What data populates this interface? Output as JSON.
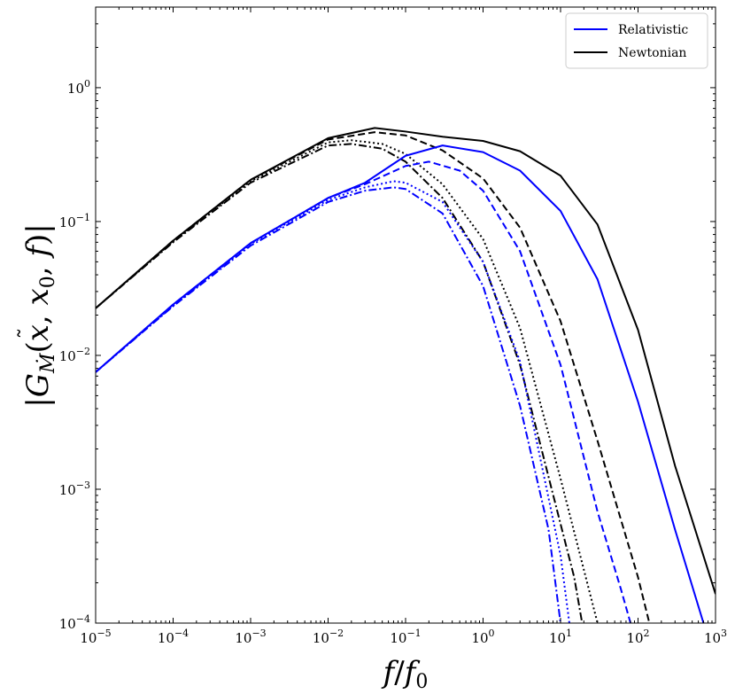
{
  "chart_data": {
    "type": "line",
    "xlabel": "f/f_0",
    "ylabel": "|G̃_Ṁ(x, x_0, f)|",
    "xscale": "log",
    "yscale": "log",
    "xlim": [
      1e-05,
      1000
    ],
    "ylim": [
      0.0001,
      4
    ],
    "grid": false,
    "legend": {
      "placement": "top-right",
      "entries": [
        {
          "label": "Relativistic",
          "color": "#0000ff"
        },
        {
          "label": "Newtonian",
          "color": "#000000"
        }
      ]
    },
    "x_ticks": [
      {
        "value": 1e-05,
        "base": "10",
        "exp": "−5"
      },
      {
        "value": 0.0001,
        "base": "10",
        "exp": "−4"
      },
      {
        "value": 0.001,
        "base": "10",
        "exp": "−3"
      },
      {
        "value": 0.01,
        "base": "10",
        "exp": "−2"
      },
      {
        "value": 0.1,
        "base": "10",
        "exp": "−1"
      },
      {
        "value": 1,
        "base": "10",
        "exp": "0"
      },
      {
        "value": 10,
        "base": "10",
        "exp": "1"
      },
      {
        "value": 100,
        "base": "10",
        "exp": "2"
      },
      {
        "value": 1000,
        "base": "10",
        "exp": "3"
      }
    ],
    "y_ticks": [
      {
        "value": 0.0001,
        "base": "10",
        "exp": "−4"
      },
      {
        "value": 0.001,
        "base": "10",
        "exp": "−3"
      },
      {
        "value": 0.01,
        "base": "10",
        "exp": "−2"
      },
      {
        "value": 0.1,
        "base": "10",
        "exp": "−1"
      },
      {
        "value": 1,
        "base": "10",
        "exp": "0"
      }
    ],
    "series": [
      {
        "model": "Newtonian",
        "style": "solid",
        "color": "#000000",
        "x": [
          1e-05,
          0.0001,
          0.001,
          0.01,
          0.04,
          0.1,
          0.3,
          1,
          3,
          10,
          30,
          100,
          300,
          1000
        ],
        "y": [
          0.0225,
          0.072,
          0.205,
          0.42,
          0.5,
          0.47,
          0.43,
          0.4,
          0.335,
          0.22,
          0.095,
          0.0155,
          0.0015,
          0.000165
        ]
      },
      {
        "model": "Newtonian",
        "style": "dashed",
        "color": "#000000",
        "x": [
          1e-05,
          0.0001,
          0.001,
          0.01,
          0.04,
          0.1,
          0.3,
          1,
          3,
          10,
          30,
          100,
          140
        ],
        "y": [
          0.0225,
          0.072,
          0.205,
          0.41,
          0.465,
          0.44,
          0.34,
          0.21,
          0.09,
          0.018,
          0.0023,
          0.00022,
          0.0001
        ]
      },
      {
        "model": "Newtonian",
        "style": "dotted",
        "color": "#000000",
        "x": [
          1e-05,
          0.0001,
          0.001,
          0.01,
          0.02,
          0.05,
          0.1,
          0.3,
          1,
          3,
          10,
          20,
          30
        ],
        "y": [
          0.0225,
          0.071,
          0.2,
          0.39,
          0.405,
          0.38,
          0.32,
          0.19,
          0.074,
          0.016,
          0.0012,
          0.00025,
          0.0001
        ]
      },
      {
        "model": "Newtonian",
        "style": "dashdot",
        "color": "#000000",
        "x": [
          1e-05,
          0.0001,
          0.001,
          0.01,
          0.02,
          0.05,
          0.1,
          0.3,
          1,
          3,
          10,
          15,
          19
        ],
        "y": [
          0.0225,
          0.07,
          0.195,
          0.37,
          0.38,
          0.35,
          0.28,
          0.15,
          0.05,
          0.0085,
          0.00055,
          0.00022,
          0.0001
        ]
      },
      {
        "model": "Relativistic",
        "style": "solid",
        "color": "#0000ff",
        "x": [
          1e-05,
          0.0001,
          0.001,
          0.01,
          0.03,
          0.1,
          0.3,
          1,
          3,
          10,
          30,
          100,
          300,
          700
        ],
        "y": [
          0.0075,
          0.024,
          0.069,
          0.15,
          0.195,
          0.31,
          0.37,
          0.33,
          0.24,
          0.12,
          0.037,
          0.0045,
          0.0005,
          0.0001
        ]
      },
      {
        "model": "Relativistic",
        "style": "dashed",
        "color": "#0000ff",
        "x": [
          1e-05,
          0.0001,
          0.001,
          0.01,
          0.03,
          0.1,
          0.2,
          0.5,
          1,
          3,
          10,
          30,
          60,
          80
        ],
        "y": [
          0.0075,
          0.024,
          0.069,
          0.15,
          0.19,
          0.26,
          0.28,
          0.24,
          0.17,
          0.06,
          0.0085,
          0.00068,
          0.00018,
          0.0001
        ]
      },
      {
        "model": "Relativistic",
        "style": "dotted",
        "color": "#0000ff",
        "x": [
          1e-05,
          0.0001,
          0.001,
          0.01,
          0.03,
          0.07,
          0.1,
          0.3,
          1,
          3,
          10,
          13
        ],
        "y": [
          0.0075,
          0.0235,
          0.068,
          0.145,
          0.18,
          0.2,
          0.195,
          0.14,
          0.05,
          0.009,
          0.00032,
          0.0001
        ]
      },
      {
        "model": "Relativistic",
        "style": "dashdot",
        "color": "#0000ff",
        "x": [
          1e-05,
          0.0001,
          0.001,
          0.01,
          0.03,
          0.07,
          0.1,
          0.3,
          1,
          3,
          7,
          10
        ],
        "y": [
          0.0075,
          0.0233,
          0.066,
          0.14,
          0.17,
          0.18,
          0.175,
          0.115,
          0.033,
          0.0042,
          0.0005,
          0.0001
        ]
      }
    ]
  }
}
